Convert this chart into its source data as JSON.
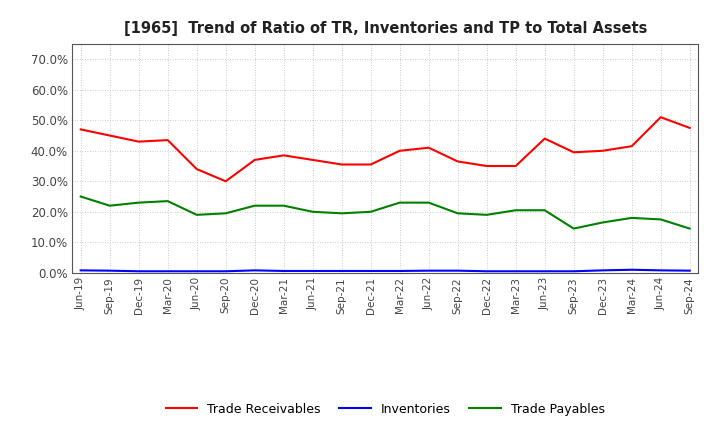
{
  "title": "[1965]  Trend of Ratio of TR, Inventories and TP to Total Assets",
  "x_labels": [
    "Jun-19",
    "Sep-19",
    "Dec-19",
    "Mar-20",
    "Jun-20",
    "Sep-20",
    "Dec-20",
    "Mar-21",
    "Jun-21",
    "Sep-21",
    "Dec-21",
    "Mar-22",
    "Jun-22",
    "Sep-22",
    "Dec-22",
    "Mar-23",
    "Jun-23",
    "Sep-23",
    "Dec-23",
    "Mar-24",
    "Jun-24",
    "Sep-24"
  ],
  "trade_receivables": [
    0.47,
    0.45,
    0.43,
    0.435,
    0.34,
    0.3,
    0.37,
    0.385,
    0.37,
    0.355,
    0.355,
    0.4,
    0.41,
    0.365,
    0.35,
    0.35,
    0.44,
    0.395,
    0.4,
    0.415,
    0.51,
    0.475
  ],
  "inventories": [
    0.008,
    0.007,
    0.005,
    0.005,
    0.005,
    0.005,
    0.008,
    0.006,
    0.006,
    0.006,
    0.006,
    0.006,
    0.007,
    0.007,
    0.005,
    0.005,
    0.005,
    0.005,
    0.008,
    0.01,
    0.008,
    0.007
  ],
  "trade_payables": [
    0.25,
    0.22,
    0.23,
    0.235,
    0.19,
    0.195,
    0.22,
    0.22,
    0.2,
    0.195,
    0.2,
    0.23,
    0.23,
    0.195,
    0.19,
    0.205,
    0.205,
    0.145,
    0.165,
    0.18,
    0.175,
    0.145
  ],
  "tr_color": "#ff0000",
  "inv_color": "#0000ff",
  "tp_color": "#008000",
  "ylim": [
    0.0,
    0.75
  ],
  "yticks": [
    0.0,
    0.1,
    0.2,
    0.3,
    0.4,
    0.5,
    0.6,
    0.7
  ],
  "background_color": "#ffffff",
  "grid_color": "#aaaaaa",
  "legend_labels": [
    "Trade Receivables",
    "Inventories",
    "Trade Payables"
  ]
}
